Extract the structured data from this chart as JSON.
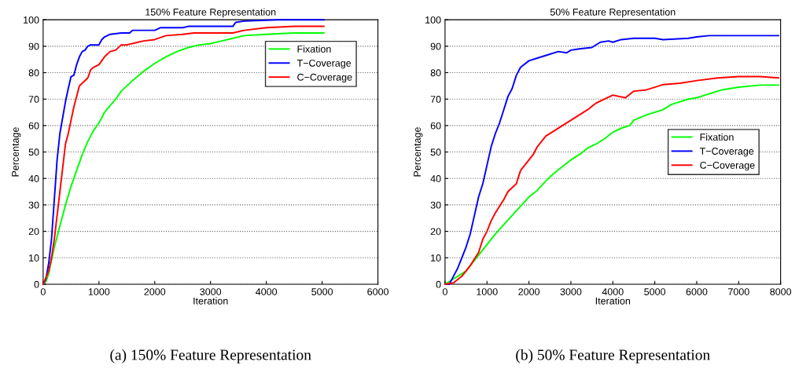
{
  "chart_data": [
    {
      "type": "line",
      "title": "150% Feature Representation",
      "xlabel": "Iteration",
      "ylabel": "Percentage",
      "xlim": [
        0,
        6000
      ],
      "ylim": [
        0,
        100
      ],
      "xticks": [
        0,
        1000,
        2000,
        3000,
        4000,
        5000,
        6000
      ],
      "yticks": [
        0,
        10,
        20,
        30,
        40,
        50,
        60,
        70,
        80,
        90,
        100
      ],
      "grid": "y",
      "legend": "top right",
      "annotations": [
        "(a) 150% Feature Representation"
      ],
      "series": [
        {
          "name": "Fixation",
          "color": "#00ff00",
          "x": [
            0,
            50,
            100,
            150,
            200,
            300,
            400,
            500,
            600,
            700,
            800,
            900,
            1000,
            1100,
            1200,
            1300,
            1400,
            1500,
            1600,
            1800,
            2000,
            2200,
            2400,
            2600,
            2800,
            3000,
            3200,
            3400,
            3600,
            4000,
            4500,
            5030
          ],
          "values": [
            0,
            1,
            4,
            9,
            14,
            22,
            30,
            37,
            43,
            49,
            54,
            58,
            61,
            65,
            67.5,
            70,
            73,
            75,
            77,
            80.5,
            83.5,
            86,
            88,
            89.5,
            90.5,
            91,
            92,
            93,
            94,
            94.5,
            95,
            95
          ]
        },
        {
          "name": "T−Coverage",
          "color": "#0000ff",
          "x": [
            0,
            50,
            100,
            150,
            200,
            250,
            300,
            350,
            400,
            450,
            500,
            550,
            600,
            650,
            700,
            750,
            800,
            850,
            1000,
            1050,
            1100,
            1200,
            1400,
            1550,
            1600,
            2000,
            2100,
            2500,
            2600,
            3400,
            3450,
            3600,
            4200,
            5030
          ],
          "values": [
            0,
            2,
            8,
            17,
            32,
            47,
            57,
            63,
            69,
            74,
            78.5,
            79,
            83,
            86,
            88,
            88.5,
            90,
            90.5,
            90.5,
            92.5,
            93.5,
            94.5,
            95,
            95,
            96,
            96,
            97,
            97,
            97.5,
            97.5,
            99,
            99.5,
            100,
            100
          ]
        },
        {
          "name": "C−Coverage",
          "color": "#ff0000",
          "x": [
            0,
            100,
            150,
            200,
            250,
            300,
            350,
            400,
            450,
            500,
            550,
            600,
            650,
            700,
            800,
            850,
            900,
            1000,
            1100,
            1200,
            1300,
            1400,
            1500,
            1700,
            1800,
            2000,
            2200,
            2500,
            2700,
            3000,
            3400,
            3600,
            4000,
            4500,
            5030
          ],
          "values": [
            0,
            5,
            10,
            17,
            26,
            35,
            44,
            53,
            57,
            62,
            67,
            71,
            75,
            76,
            78,
            81,
            82,
            83,
            86,
            88,
            88.5,
            90.5,
            90.5,
            91.5,
            92,
            92.5,
            94,
            94.5,
            95,
            95,
            95,
            96,
            97,
            97.5,
            97.5
          ]
        }
      ]
    },
    {
      "type": "line",
      "title": "50% Feature Representation",
      "xlabel": "Iteration",
      "ylabel": "Percentage",
      "xlim": [
        0,
        8000
      ],
      "ylim": [
        0,
        100
      ],
      "xticks": [
        0,
        1000,
        2000,
        3000,
        4000,
        5000,
        6000,
        7000,
        8000
      ],
      "yticks": [
        0,
        10,
        20,
        30,
        40,
        50,
        60,
        70,
        80,
        90,
        100
      ],
      "grid": "y",
      "legend": "center right",
      "annotations": [
        "(b) 50% Feature Representation"
      ],
      "series": [
        {
          "name": "Fixation",
          "color": "#00ff00",
          "x": [
            0,
            500,
            700,
            900,
            1000,
            1200,
            1400,
            1600,
            1800,
            2000,
            2200,
            2400,
            2600,
            2800,
            3000,
            3200,
            3400,
            3600,
            3800,
            4000,
            4200,
            4400,
            4500,
            4800,
            5000,
            5200,
            5400,
            5600,
            5800,
            6000,
            6200,
            6400,
            6600,
            7000,
            7500,
            7950
          ],
          "values": [
            0,
            5,
            9,
            13,
            15,
            19,
            22.5,
            26,
            29.5,
            33,
            35.5,
            39,
            42,
            44.5,
            47,
            49,
            51.5,
            53,
            55,
            57.5,
            59,
            60,
            62,
            64,
            65,
            66,
            68,
            69,
            70,
            70.5,
            71.5,
            72.5,
            73.5,
            74.5,
            75.3,
            75.3
          ]
        },
        {
          "name": "T−Coverage",
          "color": "#0000ff",
          "x": [
            0,
            100,
            200,
            300,
            400,
            500,
            600,
            700,
            800,
            900,
            1000,
            1100,
            1200,
            1300,
            1400,
            1500,
            1600,
            1700,
            1800,
            2000,
            2200,
            2500,
            2700,
            2900,
            3000,
            3200,
            3500,
            3700,
            3900,
            4000,
            4200,
            4500,
            5000,
            5200,
            5800,
            6000,
            6300,
            7000,
            7950
          ],
          "values": [
            0,
            0,
            3,
            6,
            10,
            14,
            19,
            26,
            33,
            38,
            45,
            52,
            57,
            61,
            66,
            71,
            74,
            79,
            82,
            84.5,
            85.5,
            87,
            88,
            87.5,
            88.5,
            89,
            89.5,
            91.5,
            92,
            91.5,
            92.5,
            93,
            93,
            92.5,
            93,
            93.5,
            94,
            94,
            94
          ]
        },
        {
          "name": "C−Coverage",
          "color": "#ff0000",
          "x": [
            0,
            200,
            400,
            600,
            800,
            900,
            1000,
            1100,
            1200,
            1400,
            1500,
            1700,
            1800,
            2000,
            2100,
            2200,
            2400,
            2600,
            2800,
            3000,
            3200,
            3400,
            3600,
            3800,
            4000,
            4300,
            4500,
            4800,
            5000,
            5200,
            5600,
            6000,
            6500,
            7000,
            7500,
            7950
          ],
          "values": [
            0,
            0.5,
            3,
            7,
            12,
            17,
            20,
            24,
            27,
            32,
            35,
            38,
            43,
            47,
            49,
            52,
            56,
            58,
            60,
            62,
            64,
            66,
            68.5,
            70,
            71.5,
            70.5,
            73,
            73.5,
            74.5,
            75.5,
            76,
            77,
            78,
            78.5,
            78.5,
            78
          ]
        }
      ]
    }
  ]
}
